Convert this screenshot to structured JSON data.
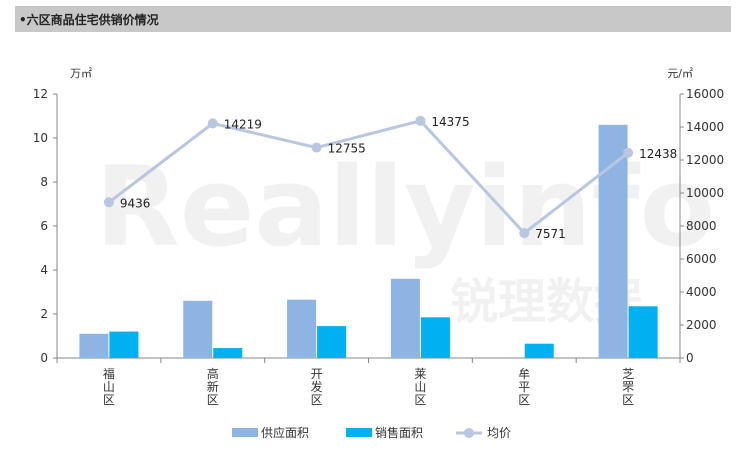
{
  "header": {
    "title": "•六区商品住宅供销价情况"
  },
  "watermark": {
    "text_en": "Reallyinfo",
    "text_cn": "锐理数据"
  },
  "colors": {
    "supply": "#8eb4e3",
    "sales": "#00b0f0",
    "price": "#b9c6e0",
    "title_bg": "#c8c8c8"
  },
  "chart_data": {
    "type": "bar",
    "categories": [
      "福山区",
      "高新区",
      "开发区",
      "莱山区",
      "牟平区",
      "芝罘区"
    ],
    "series": [
      {
        "name": "供应面积",
        "type": "bar",
        "axis": "left",
        "values": [
          1.1,
          2.6,
          2.65,
          3.6,
          0,
          10.6
        ]
      },
      {
        "name": "销售面积",
        "type": "bar",
        "axis": "left",
        "values": [
          1.2,
          0.45,
          1.45,
          1.85,
          0.65,
          2.35
        ]
      },
      {
        "name": "均价",
        "type": "line",
        "axis": "right",
        "values": [
          9436,
          14219,
          12755,
          14375,
          7571,
          12438
        ]
      }
    ],
    "ylabel_left": "万㎡",
    "ylabel_right": "元/㎡",
    "ylim_left": [
      0,
      12
    ],
    "ylim_right": [
      0,
      16000
    ],
    "yticks_left": [
      0,
      2,
      4,
      6,
      8,
      10,
      12
    ],
    "yticks_right": [
      0,
      2000,
      4000,
      6000,
      8000,
      10000,
      12000,
      14000,
      16000
    ],
    "legend_position": "bottom",
    "grid": false
  }
}
